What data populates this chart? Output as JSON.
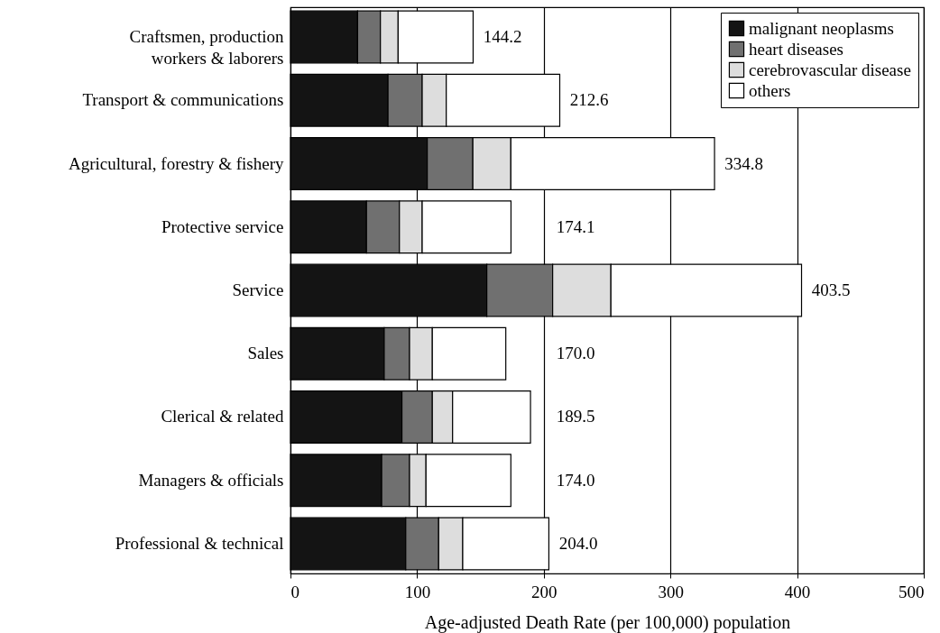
{
  "chart_data": {
    "type": "bar",
    "orientation": "horizontal",
    "stacked": true,
    "xlabel": "Age-adjusted Death Rate (per 100,000) population",
    "categories": [
      "Craftsmen, production workers & laborers",
      "Transport & communications",
      "Agricultural, forestry & fishery",
      "Protective service",
      "Service",
      "Sales",
      "Clerical & related",
      "Managers & officials",
      "Professional & technical"
    ],
    "series": [
      {
        "name": "malignant neoplasms",
        "color": "#141414",
        "values": [
          53,
          77,
          108,
          60,
          155,
          74,
          88,
          72,
          91
        ]
      },
      {
        "name": "heart diseases",
        "color": "#707070",
        "values": [
          18,
          27,
          36,
          26,
          52,
          20,
          24,
          22,
          26
        ]
      },
      {
        "name": "cerebrovascular disease",
        "color": "#dddddd",
        "values": [
          14,
          19,
          30,
          18,
          46,
          18,
          16,
          13,
          19
        ]
      },
      {
        "name": "others",
        "color": "#ffffff",
        "values": [
          59.2,
          89.6,
          160.8,
          70.1,
          150.5,
          58,
          61.5,
          67,
          68
        ]
      }
    ],
    "totals": [
      "144.2",
      "212.6",
      "334.8",
      "174.1",
      "403.5",
      "170.0",
      "189.5",
      "174.0",
      "204.0"
    ],
    "xlim": [
      0,
      500
    ],
    "xticks": [
      0,
      100,
      200,
      300,
      400,
      500
    ],
    "grid": "x",
    "legend": "top right"
  }
}
